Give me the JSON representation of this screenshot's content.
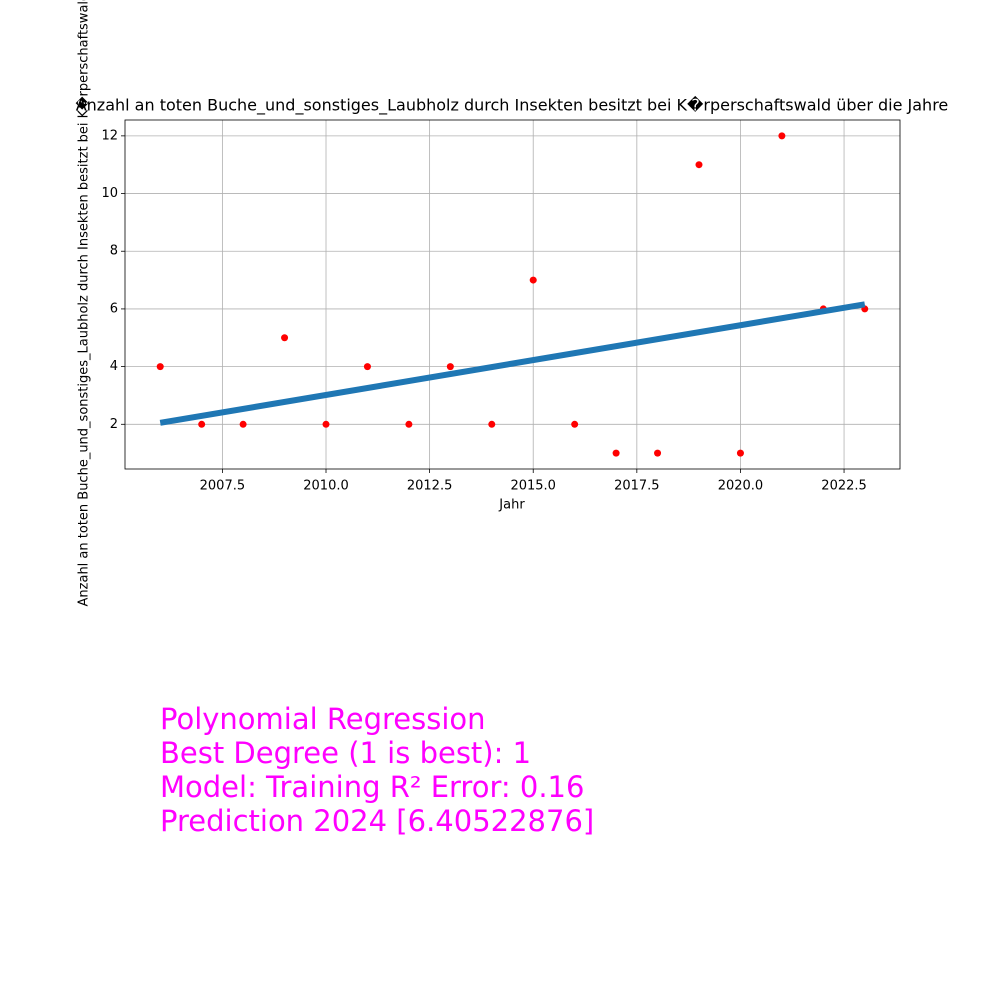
{
  "chart_data": {
    "type": "scatter",
    "title": "Anzahl an toten Buche_und_sonstiges_Laubholz durch Insekten besitzt bei K�rperschaftswald über die Jahre",
    "x_label": "Jahr",
    "y_label": "Anzahl an toten Buche_und_sonstiges_Laubholz durch Insekten besitzt bei K�rperschaftswald (",
    "xlim": [
      2005.15,
      2023.85
    ],
    "ylim": [
      0.45,
      12.55
    ],
    "xticks": [
      2007.5,
      {
        "value": 2010,
        "label": "2010.0"
      },
      2012.5,
      {
        "value": 2015,
        "label": "2015.0"
      },
      2017.5,
      {
        "value": 2020,
        "label": "2020.0"
      },
      2022.5
    ],
    "yticks": [
      2,
      4,
      6,
      8,
      10,
      12
    ],
    "grid": true,
    "series": [
      {
        "mode": "points",
        "color": "#ff0000",
        "x": [
          2006,
          2007,
          2008,
          2009,
          2010,
          2011,
          2012,
          2013,
          2014,
          2015,
          2016,
          2017,
          2018,
          2019,
          2020,
          2021,
          2022,
          2023
        ],
        "values": [
          4,
          2,
          2,
          5,
          2,
          4,
          2,
          4,
          2,
          7,
          2,
          1,
          1,
          11,
          1,
          12,
          6,
          6
        ]
      },
      {
        "mode": "line",
        "color": "#1f77b4",
        "x": [
          2006,
          2023
        ],
        "values": [
          2.05,
          6.16
        ]
      }
    ],
    "annotations": [
      "Polynomial Regression",
      "Best Degree (1 is best): 1",
      "Model: Training R² Error: 0.16",
      "Prediction 2024 [6.40522876]"
    ]
  }
}
